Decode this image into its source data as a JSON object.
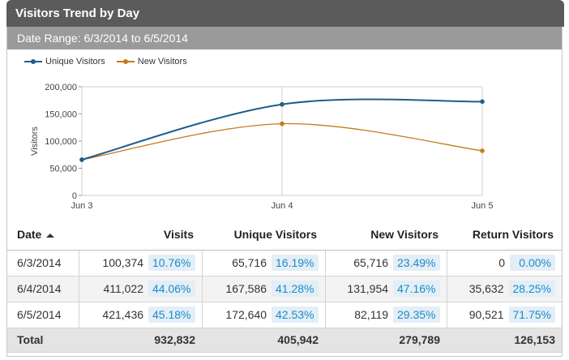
{
  "header": {
    "title": "Visitors Trend by Day",
    "range": "Date Range: 6/3/2014 to 6/5/2014"
  },
  "colors": {
    "unique": "#1f5f8b",
    "new": "#c47a1c"
  },
  "legend": [
    {
      "label": "Unique Visitors",
      "color": "#1f5f8b"
    },
    {
      "label": "New Visitors",
      "color": "#c47a1c"
    }
  ],
  "chart_data": {
    "type": "line",
    "x": [
      "Jun 3",
      "Jun 4",
      "Jun 5"
    ],
    "ylabel": "Visitors",
    "ylim": [
      0,
      200000
    ],
    "yticks": [
      "0",
      "50,000",
      "100,000",
      "150,000",
      "200,000"
    ],
    "series": [
      {
        "name": "Unique Visitors",
        "values": [
          65716,
          167586,
          172640
        ],
        "color": "#1f5f8b"
      },
      {
        "name": "New Visitors",
        "values": [
          65716,
          131954,
          82119
        ],
        "color": "#c47a1c"
      }
    ],
    "grid": "vertical"
  },
  "table": {
    "headers": {
      "date": "Date",
      "visits": "Visits",
      "unique": "Unique Visitors",
      "new": "New Visitors",
      "ret": "Return Visitors"
    },
    "rows": [
      {
        "date": "6/3/2014",
        "visits": "100,374",
        "visits_pct": "10.76%",
        "unique": "65,716",
        "unique_pct": "16.19%",
        "new": "65,716",
        "new_pct": "23.49%",
        "ret": "0",
        "ret_pct": "0.00%"
      },
      {
        "date": "6/4/2014",
        "visits": "411,022",
        "visits_pct": "44.06%",
        "unique": "167,586",
        "unique_pct": "41.28%",
        "new": "131,954",
        "new_pct": "47.16%",
        "ret": "35,632",
        "ret_pct": "28.25%"
      },
      {
        "date": "6/5/2014",
        "visits": "421,436",
        "visits_pct": "45.18%",
        "unique": "172,640",
        "unique_pct": "42.53%",
        "new": "82,119",
        "new_pct": "29.35%",
        "ret": "90,521",
        "ret_pct": "71.75%"
      }
    ],
    "total": {
      "label": "Total",
      "visits": "932,832",
      "unique": "405,942",
      "new": "279,789",
      "ret": "126,153"
    }
  }
}
